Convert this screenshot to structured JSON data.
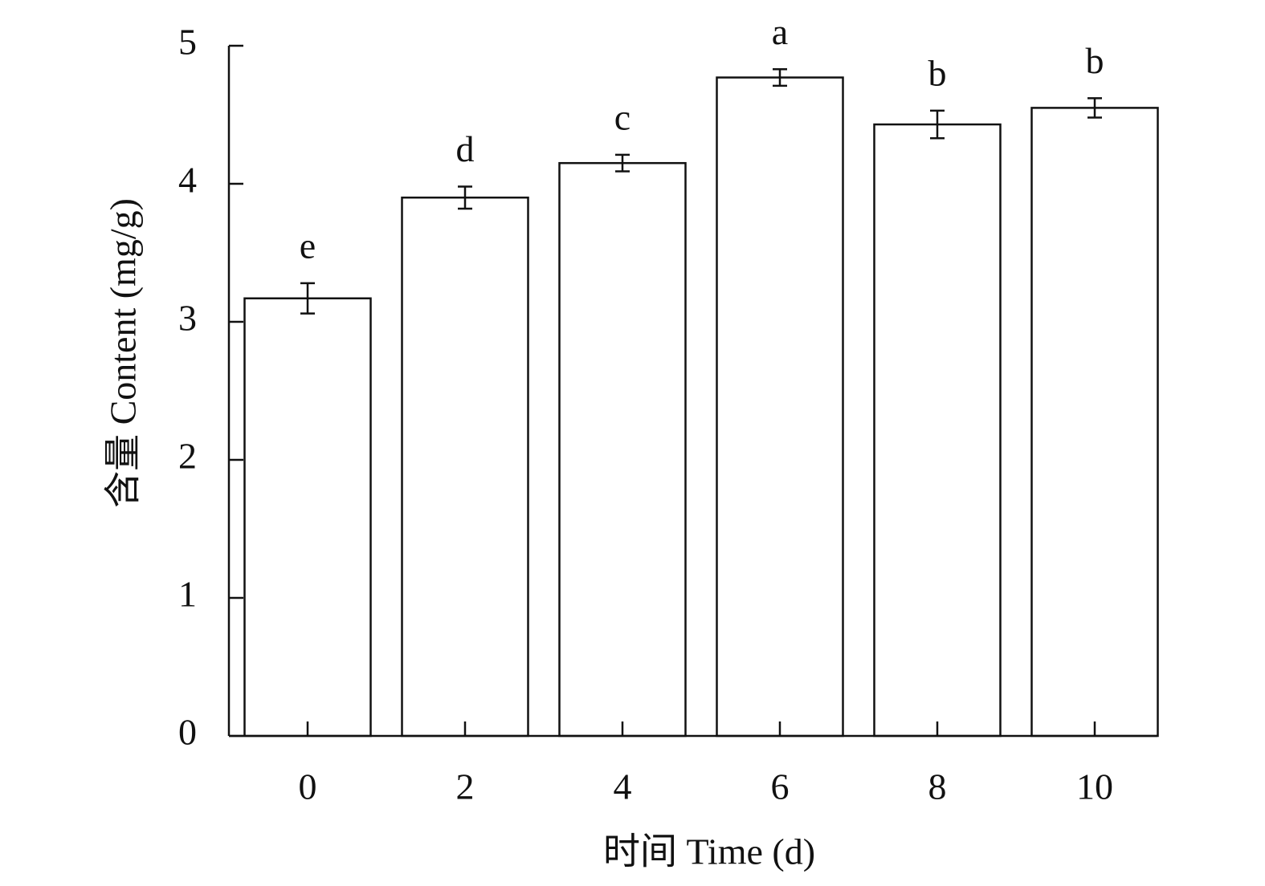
{
  "chart_data": {
    "type": "bar",
    "x_label": "时间 Time (d)",
    "y_label": "含量 Content (mg/g)",
    "categories": [
      "0",
      "2",
      "4",
      "6",
      "8",
      "10"
    ],
    "values": [
      3.17,
      3.9,
      4.15,
      4.77,
      4.43,
      4.55
    ],
    "errors": [
      0.11,
      0.08,
      0.06,
      0.06,
      0.1,
      0.07
    ],
    "letters": [
      "e",
      "d",
      "c",
      "a",
      "b",
      "b"
    ],
    "color": "#ffffff",
    "edge_color": "#000000",
    "ylim": [
      0,
      5
    ],
    "yticks": [
      0,
      1,
      2,
      3,
      4,
      5
    ],
    "grid": false
  }
}
